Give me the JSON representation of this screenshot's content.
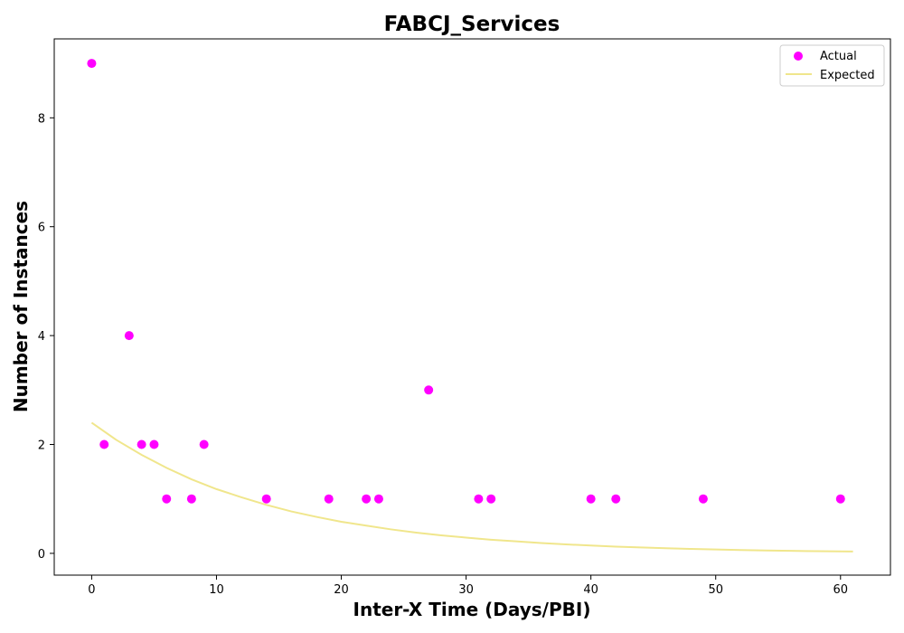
{
  "chart_data": {
    "type": "scatter",
    "title": "FABCJ_Services",
    "xlabel": "Inter-X Time (Days/PBI)",
    "ylabel": "Number of Instances",
    "xlim": [
      -3,
      64
    ],
    "ylim": [
      -0.4,
      9.45
    ],
    "xticks": [
      0,
      10,
      20,
      30,
      40,
      50,
      60
    ],
    "yticks": [
      0,
      2,
      4,
      6,
      8
    ],
    "grid": false,
    "legend_position": "top-right",
    "series": [
      {
        "name": "Actual",
        "kind": "scatter",
        "color": "#ff00ff",
        "points": [
          [
            0,
            9
          ],
          [
            1,
            2
          ],
          [
            3,
            4
          ],
          [
            4,
            2
          ],
          [
            5,
            2
          ],
          [
            6,
            1
          ],
          [
            8,
            1
          ],
          [
            9,
            2
          ],
          [
            14,
            1
          ],
          [
            19,
            1
          ],
          [
            22,
            1
          ],
          [
            23,
            1
          ],
          [
            27,
            3
          ],
          [
            31,
            1
          ],
          [
            32,
            1
          ],
          [
            40,
            1
          ],
          [
            42,
            1
          ],
          [
            49,
            1
          ],
          [
            60,
            1
          ]
        ]
      },
      {
        "name": "Expected",
        "kind": "line",
        "color": "#f0e68c",
        "points": [
          [
            0,
            2.4
          ],
          [
            2,
            2.08
          ],
          [
            4,
            1.81
          ],
          [
            6,
            1.57
          ],
          [
            8,
            1.36
          ],
          [
            10,
            1.18
          ],
          [
            12,
            1.03
          ],
          [
            14,
            0.89
          ],
          [
            16,
            0.77
          ],
          [
            18,
            0.67
          ],
          [
            20,
            0.58
          ],
          [
            22,
            0.51
          ],
          [
            24,
            0.44
          ],
          [
            26,
            0.38
          ],
          [
            28,
            0.33
          ],
          [
            30,
            0.29
          ],
          [
            32,
            0.25
          ],
          [
            34,
            0.22
          ],
          [
            36,
            0.19
          ],
          [
            38,
            0.165
          ],
          [
            40,
            0.143
          ],
          [
            42,
            0.124
          ],
          [
            44,
            0.108
          ],
          [
            46,
            0.094
          ],
          [
            48,
            0.081
          ],
          [
            50,
            0.071
          ],
          [
            52,
            0.061
          ],
          [
            54,
            0.053
          ],
          [
            56,
            0.046
          ],
          [
            58,
            0.04
          ],
          [
            61,
            0.033
          ]
        ]
      }
    ]
  }
}
